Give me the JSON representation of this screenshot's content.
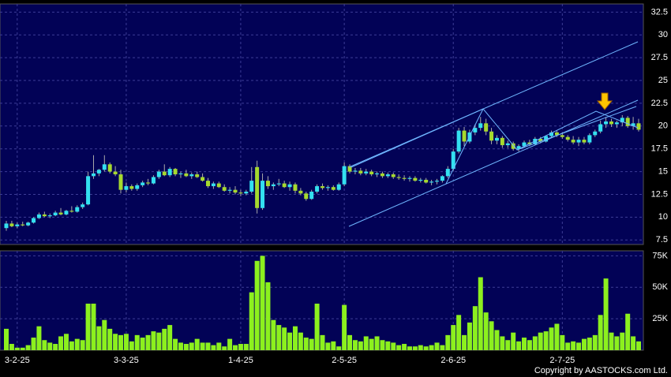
{
  "chart_data": {
    "type": "candlestick",
    "categories": [
      null,
      null,
      "3-2-25",
      null,
      null,
      null,
      null,
      null,
      null,
      null,
      null,
      null,
      null,
      null,
      null,
      null,
      null,
      null,
      null,
      null,
      null,
      null,
      "3-3-25",
      null,
      null,
      null,
      null,
      null,
      null,
      null,
      null,
      null,
      null,
      null,
      null,
      null,
      null,
      null,
      null,
      null,
      null,
      null,
      null,
      "1-4-25",
      null,
      null,
      null,
      null,
      null,
      null,
      null,
      null,
      null,
      null,
      null,
      null,
      null,
      null,
      null,
      null,
      null,
      null,
      "2-5-25",
      null,
      null,
      null,
      null,
      null,
      null,
      null,
      null,
      null,
      null,
      null,
      null,
      null,
      null,
      null,
      null,
      null,
      null,
      null,
      "2-6-25",
      null,
      null,
      null,
      null,
      null,
      null,
      null,
      null,
      null,
      null,
      null,
      null,
      null,
      null,
      null,
      null,
      null,
      null,
      null,
      "2-7-25",
      null,
      null,
      null,
      null,
      null,
      null,
      null,
      null,
      null,
      null,
      null,
      null,
      null,
      null
    ],
    "ohlc": [
      [
        8.8,
        9.6,
        8.5,
        9.3
      ],
      [
        9.3,
        9.6,
        8.9,
        9.0
      ],
      [
        9.0,
        9.4,
        8.8,
        9.2
      ],
      [
        9.2,
        9.5,
        9.0,
        9.1
      ],
      [
        9.1,
        9.5,
        9.0,
        9.4
      ],
      [
        9.4,
        10.0,
        9.3,
        9.9
      ],
      [
        9.9,
        10.5,
        9.8,
        10.3
      ],
      [
        10.3,
        10.6,
        10.0,
        10.1
      ],
      [
        10.1,
        10.4,
        9.9,
        10.2
      ],
      [
        10.2,
        10.7,
        10.1,
        10.5
      ],
      [
        10.5,
        11.0,
        10.2,
        10.3
      ],
      [
        10.3,
        10.8,
        10.2,
        10.7
      ],
      [
        10.7,
        11.2,
        10.5,
        10.6
      ],
      [
        10.6,
        11.3,
        10.5,
        11.1
      ],
      [
        11.1,
        11.6,
        10.9,
        11.4
      ],
      [
        11.4,
        15.0,
        11.3,
        14.5
      ],
      [
        14.5,
        16.8,
        14.2,
        14.8
      ],
      [
        14.8,
        15.3,
        14.5,
        15.2
      ],
      [
        15.2,
        16.8,
        15.0,
        15.8
      ],
      [
        15.8,
        16.0,
        14.8,
        15.0
      ],
      [
        15.0,
        15.6,
        14.5,
        14.7
      ],
      [
        14.7,
        15.2,
        12.6,
        13.0
      ],
      [
        13.0,
        13.8,
        12.7,
        13.4
      ],
      [
        13.4,
        13.6,
        12.9,
        13.1
      ],
      [
        13.1,
        13.7,
        12.9,
        13.5
      ],
      [
        13.5,
        14.0,
        13.3,
        13.8
      ],
      [
        13.8,
        14.2,
        13.5,
        13.7
      ],
      [
        13.7,
        14.6,
        13.6,
        14.4
      ],
      [
        14.4,
        15.2,
        14.2,
        15.0
      ],
      [
        15.0,
        15.8,
        14.5,
        14.6
      ],
      [
        14.6,
        15.5,
        14.4,
        15.3
      ],
      [
        15.3,
        15.4,
        14.5,
        14.7
      ],
      [
        14.7,
        15.0,
        14.3,
        14.8
      ],
      [
        14.8,
        15.2,
        14.4,
        14.5
      ],
      [
        14.5,
        14.9,
        14.2,
        14.7
      ],
      [
        14.7,
        15.0,
        14.3,
        14.4
      ],
      [
        14.4,
        14.8,
        13.9,
        14.0
      ],
      [
        14.0,
        14.3,
        13.2,
        13.4
      ],
      [
        13.4,
        13.9,
        13.1,
        13.7
      ],
      [
        13.7,
        13.9,
        13.2,
        13.3
      ],
      [
        13.3,
        13.6,
        12.8,
        12.9
      ],
      [
        12.9,
        13.3,
        12.6,
        13.0
      ],
      [
        13.0,
        13.4,
        12.5,
        12.7
      ],
      [
        12.7,
        13.0,
        12.3,
        12.6
      ],
      [
        12.6,
        13.0,
        12.4,
        12.8
      ],
      [
        12.8,
        15.5,
        12.6,
        14.0
      ],
      [
        15.5,
        16.2,
        10.4,
        11.0
      ],
      [
        11.0,
        14.8,
        10.8,
        14.0
      ],
      [
        14.0,
        14.5,
        13.1,
        13.4
      ],
      [
        13.4,
        13.8,
        13.0,
        13.6
      ],
      [
        13.6,
        14.2,
        13.4,
        13.7
      ],
      [
        13.7,
        14.0,
        13.2,
        13.3
      ],
      [
        13.3,
        13.9,
        12.9,
        13.6
      ],
      [
        13.6,
        13.8,
        12.6,
        12.9
      ],
      [
        12.9,
        13.2,
        12.4,
        12.6
      ],
      [
        12.6,
        12.8,
        11.8,
        12.0
      ],
      [
        12.0,
        13.0,
        11.9,
        12.8
      ],
      [
        12.8,
        13.6,
        12.6,
        13.4
      ],
      [
        13.4,
        13.7,
        13.0,
        13.2
      ],
      [
        13.2,
        13.5,
        12.9,
        13.3
      ],
      [
        13.3,
        13.5,
        12.9,
        13.0
      ],
      [
        13.0,
        13.8,
        12.9,
        13.6
      ],
      [
        13.6,
        16.0,
        13.4,
        15.6
      ],
      [
        15.6,
        15.8,
        14.8,
        15.0
      ],
      [
        15.0,
        15.4,
        14.7,
        15.1
      ],
      [
        15.1,
        15.4,
        14.6,
        14.8
      ],
      [
        14.8,
        15.3,
        14.6,
        15.0
      ],
      [
        15.0,
        15.2,
        14.5,
        14.7
      ],
      [
        14.7,
        15.0,
        14.4,
        14.8
      ],
      [
        14.8,
        15.0,
        14.3,
        14.5
      ],
      [
        14.5,
        14.9,
        14.3,
        14.7
      ],
      [
        14.7,
        14.9,
        14.2,
        14.4
      ],
      [
        14.4,
        14.7,
        14.1,
        14.3
      ],
      [
        14.3,
        14.6,
        14.0,
        14.2
      ],
      [
        14.2,
        14.5,
        13.9,
        14.3
      ],
      [
        14.3,
        14.5,
        13.9,
        14.0
      ],
      [
        14.0,
        14.3,
        13.8,
        14.1
      ],
      [
        14.1,
        14.3,
        13.7,
        13.8
      ],
      [
        13.8,
        14.1,
        13.5,
        13.9
      ],
      [
        13.9,
        14.2,
        13.6,
        14.0
      ],
      [
        14.0,
        14.6,
        13.8,
        14.5
      ],
      [
        14.5,
        15.6,
        14.3,
        15.3
      ],
      [
        15.3,
        17.5,
        15.1,
        17.2
      ],
      [
        17.2,
        19.8,
        17.0,
        19.5
      ],
      [
        19.5,
        19.9,
        17.8,
        18.3
      ],
      [
        18.3,
        19.6,
        18.1,
        19.3
      ],
      [
        19.3,
        20.2,
        19.0,
        19.8
      ],
      [
        19.8,
        21.0,
        19.5,
        20.3
      ],
      [
        20.3,
        20.8,
        19.0,
        19.4
      ],
      [
        19.4,
        19.8,
        18.0,
        18.4
      ],
      [
        18.4,
        19.0,
        18.0,
        18.7
      ],
      [
        18.7,
        18.9,
        17.6,
        17.9
      ],
      [
        17.9,
        18.4,
        17.6,
        18.1
      ],
      [
        18.1,
        18.3,
        17.3,
        17.5
      ],
      [
        17.5,
        18.0,
        17.2,
        17.8
      ],
      [
        17.8,
        18.4,
        17.6,
        18.2
      ],
      [
        18.2,
        18.5,
        17.8,
        18.0
      ],
      [
        18.0,
        18.8,
        17.9,
        18.6
      ],
      [
        18.6,
        18.8,
        18.1,
        18.3
      ],
      [
        18.3,
        19.0,
        18.2,
        18.9
      ],
      [
        18.9,
        19.5,
        18.7,
        19.3
      ],
      [
        19.3,
        19.5,
        18.8,
        19.0
      ],
      [
        19.0,
        19.3,
        18.6,
        18.8
      ],
      [
        18.8,
        19.0,
        18.3,
        18.5
      ],
      [
        18.5,
        18.9,
        18.0,
        18.2
      ],
      [
        18.2,
        18.8,
        17.8,
        18.5
      ],
      [
        18.5,
        18.8,
        18.0,
        18.2
      ],
      [
        18.2,
        19.2,
        18.0,
        19.0
      ],
      [
        19.0,
        19.6,
        18.8,
        19.4
      ],
      [
        19.4,
        20.6,
        19.2,
        20.2
      ],
      [
        20.2,
        21.0,
        19.8,
        20.5
      ],
      [
        20.5,
        20.8,
        19.9,
        20.2
      ],
      [
        20.2,
        20.6,
        19.8,
        20.4
      ],
      [
        20.4,
        21.2,
        20.0,
        20.9
      ],
      [
        20.9,
        21.1,
        19.8,
        20.0
      ],
      [
        20.0,
        21.0,
        19.6,
        20.3
      ],
      [
        20.3,
        20.8,
        19.4,
        19.6
      ]
    ],
    "up_color": "#33e0f0",
    "down_color": "#a6d92e",
    "ylim": [
      7,
      33.4
    ],
    "yticks": [
      7.5,
      10,
      12.5,
      15,
      17.5,
      20,
      22.5,
      25,
      27.5,
      30,
      32.5
    ],
    "grid": true,
    "volume": {
      "type": "bar",
      "color": "#8cf01e",
      "values": [
        17000,
        5000,
        2000,
        2000,
        4000,
        10000,
        19000,
        8000,
        6000,
        5000,
        11000,
        13000,
        7000,
        9000,
        8000,
        37000,
        37000,
        19000,
        24000,
        17000,
        13000,
        12000,
        13000,
        7000,
        12000,
        10000,
        12000,
        15000,
        14000,
        17000,
        20000,
        9000,
        6000,
        5000,
        6000,
        9000,
        6000,
        6000,
        4000,
        6000,
        3000,
        9000,
        4000,
        5000,
        5000,
        46000,
        71000,
        75000,
        54000,
        24000,
        20000,
        18000,
        14000,
        19000,
        14000,
        10000,
        9000,
        37000,
        12000,
        6000,
        7000,
        3000,
        36000,
        12000,
        8000,
        7000,
        11000,
        9000,
        11000,
        8000,
        7000,
        6000,
        4000,
        5000,
        3000,
        3000,
        4000,
        3000,
        4000,
        6000,
        4000,
        12000,
        20000,
        28000,
        12000,
        22000,
        35000,
        58000,
        30000,
        23000,
        16000,
        11000,
        8000,
        14000,
        7000,
        10000,
        8000,
        11000,
        14000,
        15000,
        18000,
        21000,
        12000,
        6000,
        7000,
        6000,
        9000,
        10000,
        12000,
        28000,
        57000,
        14000,
        11000,
        14000,
        29000,
        11000,
        7000
      ],
      "ylim": [
        0,
        79000
      ],
      "yticks": [
        {
          "value": 25000,
          "label": "25K"
        },
        {
          "value": 50000,
          "label": "50K"
        },
        {
          "value": 75000,
          "label": "75K"
        }
      ]
    },
    "copyright": "Copyright by AASTOCKS.com Ltd."
  }
}
